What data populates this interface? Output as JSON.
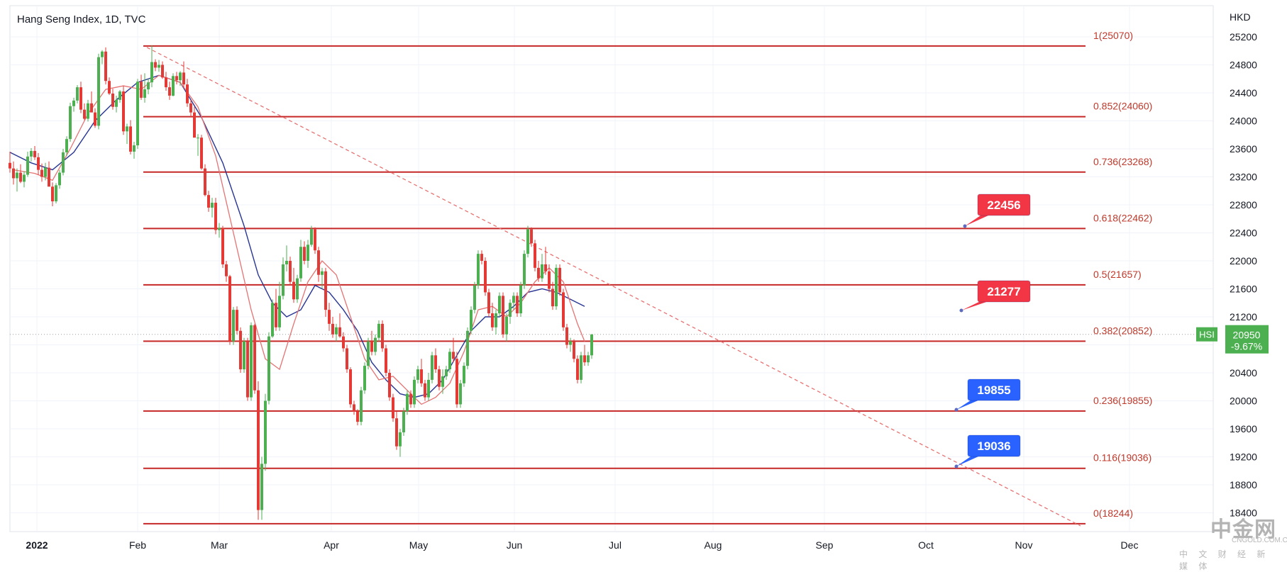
{
  "chart_title": "Hang Seng Index, 1D, TVC",
  "currency": "HKD",
  "watermark": {
    "brand": "中金网",
    "url": "CNGOLD.COM.CN",
    "tagline": "中 文 财 经 新 媒 体"
  },
  "colors": {
    "up": "#26a69a",
    "candle_up": "#4caf50",
    "candle_down": "#e53935",
    "fib_line": "#c62828",
    "ma_fast": "#e57373",
    "ma_slow": "#283593",
    "trend": "#e57373",
    "badge_red": "#f23645",
    "badge_blue": "#2962ff",
    "price_tag": "#4caf50"
  },
  "chart_data": {
    "type": "candlestick",
    "symbol": "HSI",
    "last_price": "20950",
    "change_pct": "-9.67%",
    "y_ticks": [
      25200,
      24800,
      24400,
      24000,
      23600,
      23200,
      22800,
      22400,
      22000,
      21600,
      21200,
      20800,
      20400,
      20000,
      19600,
      19200,
      18800,
      18400
    ],
    "ylim": [
      18150,
      25400
    ],
    "x_ticks": [
      "2022",
      "Feb",
      "Mar",
      "Apr",
      "May",
      "Jun",
      "Jul",
      "Aug",
      "Sep",
      "Oct",
      "Nov",
      "Dec"
    ],
    "fib_levels": [
      {
        "label": "1(25070)",
        "value": 25070
      },
      {
        "label": "0.852(24060)",
        "value": 24060
      },
      {
        "label": "0.736(23268)",
        "value": 23268
      },
      {
        "label": "0.618(22462)",
        "value": 22462
      },
      {
        "label": "0.5(21657)",
        "value": 21657
      },
      {
        "label": "0.382(20852)",
        "value": 20852
      },
      {
        "label": "0.236(19855)",
        "value": 19855
      },
      {
        "label": "0.116(19036)",
        "value": 19036
      },
      {
        "label": "0(18244)",
        "value": 18244
      }
    ],
    "trendline": [
      {
        "date": "2022-02-03",
        "value": 25070
      },
      {
        "date": "2022-11-28",
        "value": 18244
      }
    ],
    "callouts": [
      {
        "label": "22456",
        "value": 22456,
        "color": "red"
      },
      {
        "label": "21277",
        "value": 21277,
        "color": "red"
      },
      {
        "label": "19855",
        "value": 19855,
        "color": "blue"
      },
      {
        "label": "19036",
        "value": 19036,
        "color": "blue"
      }
    ],
    "candles_ohlc": [
      [
        23400,
        23560,
        23260,
        23320
      ],
      [
        23320,
        23420,
        23090,
        23180
      ],
      [
        23180,
        23320,
        22990,
        23260
      ],
      [
        23260,
        23380,
        23110,
        23130
      ],
      [
        23130,
        23280,
        23050,
        23230
      ],
      [
        23230,
        23560,
        23200,
        23490
      ],
      [
        23490,
        23610,
        23420,
        23570
      ],
      [
        23570,
        23640,
        23440,
        23480
      ],
      [
        23480,
        23540,
        23230,
        23300
      ],
      [
        23300,
        23390,
        23130,
        23200
      ],
      [
        23200,
        23400,
        23150,
        23330
      ],
      [
        23330,
        23420,
        23230,
        23060
      ],
      [
        23060,
        23120,
        22780,
        22850
      ],
      [
        22850,
        23110,
        22820,
        23080
      ],
      [
        23080,
        23300,
        23030,
        23260
      ],
      [
        23260,
        23600,
        23220,
        23550
      ],
      [
        23550,
        23780,
        23500,
        23740
      ],
      [
        23740,
        24260,
        23700,
        24210
      ],
      [
        24210,
        24330,
        24130,
        24290
      ],
      [
        24290,
        24510,
        24250,
        24480
      ],
      [
        24480,
        24560,
        24110,
        24160
      ],
      [
        24160,
        24250,
        24010,
        24030
      ],
      [
        24030,
        24300,
        23990,
        24250
      ],
      [
        24250,
        24420,
        24150,
        24120
      ],
      [
        24120,
        24180,
        23900,
        23930
      ],
      [
        23930,
        24960,
        23880,
        24910
      ],
      [
        24910,
        25010,
        24810,
        24990
      ],
      [
        24990,
        25050,
        24520,
        24570
      ],
      [
        24570,
        24620,
        24370,
        24390
      ],
      [
        24390,
        24460,
        24160,
        24200
      ],
      [
        24200,
        24360,
        24120,
        24300
      ],
      [
        24300,
        24440,
        24260,
        24420
      ],
      [
        24420,
        24500,
        23800,
        23850
      ],
      [
        23850,
        23960,
        23670,
        23920
      ],
      [
        23920,
        24010,
        23520,
        23560
      ],
      [
        23560,
        23700,
        23460,
        23650
      ],
      [
        23650,
        24600,
        23600,
        24560
      ],
      [
        24560,
        24660,
        24300,
        24330
      ],
      [
        24330,
        24680,
        24260,
        24450
      ],
      [
        24450,
        24600,
        24380,
        24550
      ],
      [
        24550,
        25080,
        24480,
        24840
      ],
      [
        24840,
        24880,
        24710,
        24760
      ],
      [
        24760,
        24870,
        24700,
        24800
      ],
      [
        24800,
        24850,
        24600,
        24620
      ],
      [
        24620,
        24700,
        24430,
        24480
      ],
      [
        24480,
        24560,
        24300,
        24360
      ],
      [
        24360,
        24680,
        24350,
        24640
      ],
      [
        24640,
        24700,
        24520,
        24580
      ],
      [
        24580,
        24710,
        24500,
        24690
      ],
      [
        24690,
        24850,
        24480,
        24520
      ],
      [
        24520,
        24600,
        24200,
        24250
      ],
      [
        24250,
        24300,
        24050,
        24120
      ],
      [
        24120,
        24200,
        23800,
        23760
      ],
      [
        23760,
        23810,
        23500,
        23760
      ],
      [
        23760,
        23800,
        23300,
        23320
      ],
      [
        23320,
        23380,
        22920,
        22940
      ],
      [
        22940,
        23000,
        22700,
        22760
      ],
      [
        22760,
        22900,
        22620,
        22830
      ],
      [
        22830,
        22900,
        22380,
        22440
      ],
      [
        22440,
        22540,
        22330,
        22470
      ],
      [
        22470,
        22500,
        21900,
        21950
      ],
      [
        21950,
        22000,
        21700,
        21780
      ],
      [
        21780,
        21800,
        20800,
        20850
      ],
      [
        20850,
        21340,
        20800,
        21300
      ],
      [
        21300,
        21350,
        20950,
        21000
      ],
      [
        21000,
        21050,
        20400,
        20450
      ],
      [
        20450,
        20900,
        20400,
        20850
      ],
      [
        20850,
        20900,
        20000,
        20050
      ],
      [
        20050,
        21120,
        20000,
        21080
      ],
      [
        21080,
        21100,
        20100,
        20150
      ],
      [
        20150,
        20280,
        18300,
        18440
      ],
      [
        18440,
        19200,
        18300,
        19100
      ],
      [
        19100,
        20100,
        19000,
        20000
      ],
      [
        20000,
        20980,
        19950,
        20920
      ],
      [
        20920,
        21450,
        20900,
        21400
      ],
      [
        21400,
        21600,
        21000,
        21050
      ],
      [
        21050,
        21700,
        21000,
        21500
      ],
      [
        21500,
        22050,
        21450,
        21950
      ],
      [
        21950,
        22220,
        21850,
        22000
      ],
      [
        22000,
        22060,
        21650,
        21700
      ],
      [
        21700,
        21900,
        21400,
        21450
      ],
      [
        21450,
        21800,
        21400,
        21750
      ],
      [
        21750,
        22300,
        21700,
        22200
      ],
      [
        22200,
        22280,
        21950,
        22000
      ],
      [
        22000,
        22300,
        21900,
        22230
      ],
      [
        22230,
        22500,
        22200,
        22450
      ],
      [
        22450,
        22480,
        22100,
        22150
      ],
      [
        22150,
        22200,
        21700,
        21800
      ],
      [
        21800,
        21900,
        21600,
        21850
      ],
      [
        21850,
        21900,
        21200,
        21300
      ],
      [
        21300,
        21400,
        21000,
        21100
      ],
      [
        21100,
        21200,
        20900,
        20950
      ],
      [
        20950,
        21100,
        20850,
        21050
      ],
      [
        21050,
        21250,
        20900,
        20920
      ],
      [
        20920,
        20980,
        20700,
        20750
      ],
      [
        20750,
        20800,
        20400,
        20450
      ],
      [
        20450,
        20480,
        19900,
        19950
      ],
      [
        19950,
        20000,
        19800,
        19850
      ],
      [
        19850,
        19880,
        19650,
        19700
      ],
      [
        19700,
        20200,
        19650,
        20150
      ],
      [
        20150,
        20550,
        20100,
        20500
      ],
      [
        20500,
        20900,
        20450,
        20850
      ],
      [
        20850,
        21000,
        20650,
        20700
      ],
      [
        20700,
        20950,
        20650,
        20900
      ],
      [
        20900,
        21150,
        20850,
        21100
      ],
      [
        21100,
        21150,
        20700,
        20750
      ],
      [
        20750,
        20800,
        20350,
        20400
      ],
      [
        20400,
        20450,
        20000,
        20050
      ],
      [
        20050,
        20100,
        19700,
        19750
      ],
      [
        19750,
        19850,
        19300,
        19350
      ],
      [
        19350,
        19600,
        19200,
        19550
      ],
      [
        19550,
        19900,
        19500,
        19850
      ],
      [
        19850,
        20150,
        19800,
        20100
      ],
      [
        20100,
        20150,
        19900,
        19950
      ],
      [
        19950,
        20350,
        19900,
        20300
      ],
      [
        20300,
        20500,
        20250,
        20450
      ],
      [
        20450,
        20600,
        20200,
        20250
      ],
      [
        20250,
        20300,
        20000,
        20050
      ],
      [
        20050,
        20400,
        20000,
        20300
      ],
      [
        20300,
        20700,
        20250,
        20650
      ],
      [
        20650,
        20750,
        20400,
        20450
      ],
      [
        20450,
        20500,
        20150,
        20200
      ],
      [
        20200,
        20450,
        20100,
        20350
      ],
      [
        20350,
        20500,
        20300,
        20450
      ],
      [
        20450,
        20750,
        20400,
        20700
      ],
      [
        20700,
        20900,
        20550,
        20600
      ],
      [
        20600,
        20700,
        19900,
        19950
      ],
      [
        19950,
        20300,
        19900,
        20250
      ],
      [
        20250,
        20550,
        20200,
        20500
      ],
      [
        20500,
        21050,
        20450,
        21000
      ],
      [
        21000,
        21350,
        20950,
        21300
      ],
      [
        21300,
        21700,
        21250,
        21650
      ],
      [
        21650,
        22150,
        21600,
        22100
      ],
      [
        22100,
        22150,
        21950,
        22000
      ],
      [
        22000,
        22050,
        21500,
        21550
      ],
      [
        21550,
        21600,
        21200,
        21250
      ],
      [
        21250,
        21400,
        21000,
        21050
      ],
      [
        21050,
        21300,
        20950,
        21250
      ],
      [
        21250,
        21550,
        21200,
        21500
      ],
      [
        21500,
        21550,
        20900,
        20950
      ],
      [
        20950,
        21250,
        20850,
        21200
      ],
      [
        21200,
        21450,
        21100,
        21400
      ],
      [
        21400,
        21550,
        21300,
        21500
      ],
      [
        21500,
        21550,
        21200,
        21250
      ],
      [
        21250,
        21700,
        21200,
        21650
      ],
      [
        21650,
        22150,
        21600,
        22100
      ],
      [
        22100,
        22500,
        22050,
        22450
      ],
      [
        22450,
        22480,
        22200,
        22250
      ],
      [
        22250,
        22300,
        21850,
        21900
      ],
      [
        21900,
        22000,
        21700,
        21750
      ],
      [
        21750,
        22100,
        21700,
        21950
      ],
      [
        21950,
        22200,
        21800,
        21850
      ],
      [
        21850,
        21950,
        21550,
        21600
      ],
      [
        21600,
        21700,
        21300,
        21350
      ],
      [
        21350,
        21950,
        21300,
        21900
      ],
      [
        21900,
        21950,
        21500,
        21550
      ],
      [
        21550,
        21600,
        21000,
        21050
      ],
      [
        21050,
        21100,
        20750,
        20800
      ],
      [
        20800,
        20900,
        20700,
        20850
      ],
      [
        20850,
        20880,
        20550,
        20600
      ],
      [
        20600,
        20650,
        20250,
        20300
      ],
      [
        20300,
        20700,
        20250,
        20650
      ],
      [
        20650,
        20800,
        20500,
        20550
      ],
      [
        20550,
        20700,
        20500,
        20650
      ],
      [
        20650,
        20950,
        20600,
        20950
      ]
    ],
    "ma_fast": [
      [
        1,
        23300
      ],
      [
        7,
        23250
      ],
      [
        12,
        23150
      ],
      [
        17,
        23600
      ],
      [
        22,
        24100
      ],
      [
        27,
        24450
      ],
      [
        32,
        24500
      ],
      [
        37,
        24450
      ],
      [
        42,
        24650
      ],
      [
        48,
        24550
      ],
      [
        53,
        24200
      ],
      [
        58,
        23500
      ],
      [
        63,
        22400
      ],
      [
        68,
        21300
      ],
      [
        72,
        20600
      ],
      [
        76,
        20450
      ],
      [
        80,
        21100
      ],
      [
        84,
        21700
      ],
      [
        88,
        22000
      ],
      [
        92,
        21800
      ],
      [
        96,
        21200
      ],
      [
        100,
        20600
      ],
      [
        104,
        20300
      ],
      [
        108,
        20350
      ],
      [
        112,
        20150
      ],
      [
        116,
        19950
      ],
      [
        120,
        20050
      ],
      [
        124,
        20250
      ],
      [
        128,
        20700
      ],
      [
        132,
        21300
      ],
      [
        136,
        21350
      ],
      [
        140,
        21200
      ],
      [
        144,
        21400
      ],
      [
        148,
        21700
      ],
      [
        152,
        21900
      ],
      [
        156,
        21700
      ],
      [
        160,
        21100
      ],
      [
        162,
        20850
      ]
    ],
    "ma_slow": [
      [
        0,
        23550
      ],
      [
        6,
        23400
      ],
      [
        12,
        23300
      ],
      [
        18,
        23550
      ],
      [
        24,
        24000
      ],
      [
        30,
        24300
      ],
      [
        36,
        24550
      ],
      [
        42,
        24650
      ],
      [
        48,
        24550
      ],
      [
        54,
        24050
      ],
      [
        60,
        23400
      ],
      [
        66,
        22500
      ],
      [
        70,
        21800
      ],
      [
        74,
        21400
      ],
      [
        78,
        21200
      ],
      [
        82,
        21300
      ],
      [
        86,
        21650
      ],
      [
        90,
        21550
      ],
      [
        94,
        21300
      ],
      [
        98,
        21000
      ],
      [
        102,
        20550
      ],
      [
        106,
        20300
      ],
      [
        110,
        20100
      ],
      [
        114,
        20050
      ],
      [
        118,
        20100
      ],
      [
        122,
        20300
      ],
      [
        126,
        20650
      ],
      [
        130,
        21000
      ],
      [
        134,
        21200
      ],
      [
        138,
        21200
      ],
      [
        142,
        21350
      ],
      [
        146,
        21550
      ],
      [
        150,
        21600
      ],
      [
        154,
        21550
      ],
      [
        158,
        21450
      ],
      [
        162,
        21350
      ]
    ]
  }
}
